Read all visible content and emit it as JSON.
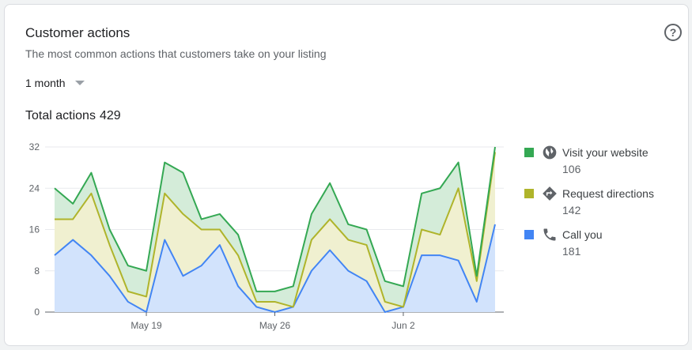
{
  "card": {
    "title": "Customer actions",
    "subtitle": "The most common actions that customers take on your listing",
    "help_icon": "help-circle-icon",
    "period": "1 month",
    "total_label": "Total actions",
    "total_value": "429"
  },
  "colors": {
    "website": "#34a853",
    "directions": "#afb42b",
    "calls": "#4285f4"
  },
  "legend": [
    {
      "name": "Visit your website",
      "value": "106",
      "icon": "globe-icon",
      "color": "#34a853"
    },
    {
      "name": "Request directions",
      "value": "142",
      "icon": "directions-icon",
      "color": "#afb42b"
    },
    {
      "name": "Call you",
      "value": "181",
      "icon": "phone-icon",
      "color": "#4285f4"
    }
  ],
  "chart_data": {
    "type": "area",
    "stacked": true,
    "x_ticks": [
      "May 19",
      "May 26",
      "Jun 2"
    ],
    "x_tick_index": [
      5,
      12,
      19
    ],
    "ylim": [
      0,
      32
    ],
    "yticks": [
      0,
      8,
      16,
      24,
      32
    ],
    "grid": true,
    "legend_position": "right",
    "series": [
      {
        "name": "Call you",
        "values": [
          11,
          14,
          11,
          7,
          2,
          0,
          14,
          7,
          9,
          13,
          5,
          1,
          0,
          1,
          8,
          12,
          8,
          6,
          0,
          1,
          11,
          11,
          10,
          2,
          17
        ]
      },
      {
        "name": "Request directions",
        "values": [
          7,
          4,
          12,
          6,
          2,
          3,
          9,
          12,
          7,
          3,
          6,
          1,
          2,
          0,
          6,
          6,
          6,
          7,
          2,
          0,
          5,
          4,
          14,
          4,
          14
        ]
      },
      {
        "name": "Visit your website",
        "values": [
          6,
          3,
          4,
          3,
          5,
          5,
          6,
          8,
          2,
          3,
          4,
          2,
          2,
          4,
          5,
          7,
          3,
          3,
          4,
          4,
          7,
          9,
          5,
          1,
          1
        ]
      }
    ],
    "totals": [
      24,
      21,
      27,
      16,
      9,
      8,
      29,
      27,
      18,
      19,
      15,
      4,
      4,
      5,
      19,
      25,
      17,
      16,
      6,
      5,
      23,
      24,
      29,
      7,
      32
    ]
  }
}
